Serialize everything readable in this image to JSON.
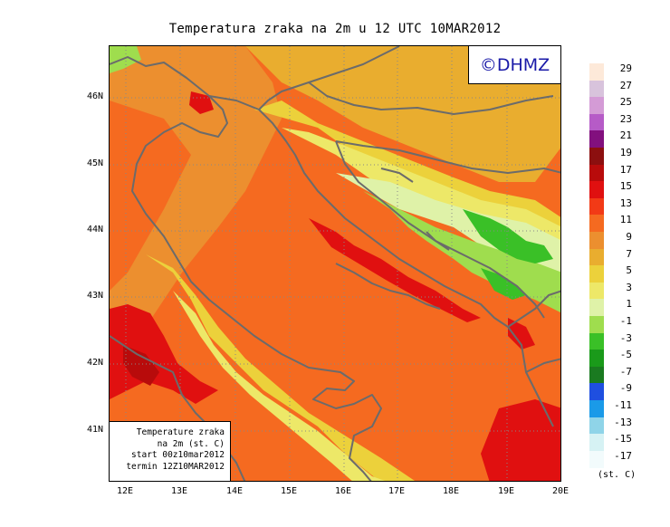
{
  "title": "Temperatura zraka na 2m u 12 UTC 10MAR2012",
  "logo": "©DHMZ",
  "info": {
    "line1": "Temperature zraka",
    "line2": "na 2m (st. C)",
    "line3": "start 00z10mar2012",
    "line4": "termin 12Z10MAR2012"
  },
  "lat_labels": [
    "46N",
    "45N",
    "44N",
    "43N",
    "42N",
    "41N"
  ],
  "lon_labels": [
    "12E",
    "13E",
    "14E",
    "15E",
    "16E",
    "17E",
    "18E",
    "19E",
    "20E"
  ],
  "legend": {
    "unit": "(st. C)",
    "labels": [
      "29",
      "27",
      "25",
      "23",
      "21",
      "19",
      "17",
      "15",
      "13",
      "11",
      "9",
      "7",
      "5",
      "3",
      "1",
      "-1",
      "-3",
      "-5",
      "-7",
      "-9",
      "-11",
      "-13",
      "-15",
      "-17"
    ],
    "colors": [
      "#fde9d9",
      "#d8c3dc",
      "#d49bd6",
      "#b65bc7",
      "#82107e",
      "#8c0f0f",
      "#b80b0b",
      "#e01010",
      "#f23a16",
      "#f56a20",
      "#ec8f2f",
      "#e9ad2f",
      "#ecd13b",
      "#ede868",
      "#dff2a8",
      "#9fdd4e",
      "#3ac027",
      "#1a9a1a",
      "#1a7a20",
      "#1f4fe0",
      "#1a9ae8",
      "#8fd4e8",
      "#d6f2f4",
      "#f2fbfc"
    ]
  },
  "palette": {
    "background_sea": "#f56a20",
    "inland": "#e9ad2f",
    "warm_core": "#e01010",
    "hot_core": "#b80b0b",
    "cool": "#ede868",
    "cold": "#dff2a8",
    "colder": "#9fdd4e",
    "coldest": "#3ac027",
    "border_gray": "#6b6b6b"
  }
}
